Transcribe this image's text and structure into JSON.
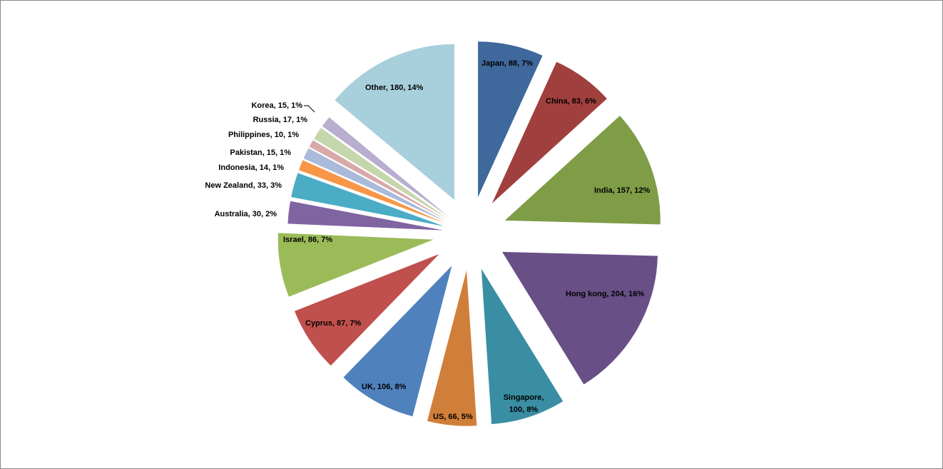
{
  "chart_data": {
    "type": "pie",
    "title": "",
    "exploded": true,
    "legend": "none",
    "slices": [
      {
        "label": "Japan",
        "value": 88,
        "percent": "7%",
        "color": "#3F689C"
      },
      {
        "label": "China",
        "value": 83,
        "percent": "6%",
        "color": "#A0403E"
      },
      {
        "label": "India",
        "value": 157,
        "percent": "12%",
        "color": "#7F9C47"
      },
      {
        "label": "Hong kong",
        "value": 204,
        "percent": "16%",
        "color": "#684F86"
      },
      {
        "label": "Singapore",
        "value": 100,
        "percent": "8%",
        "color": "#3A8EA3"
      },
      {
        "label": "US",
        "value": 66,
        "percent": "5%",
        "color": "#D07F3A"
      },
      {
        "label": "UK",
        "value": 106,
        "percent": "8%",
        "color": "#4F81BD"
      },
      {
        "label": "Cyprus",
        "value": 87,
        "percent": "7%",
        "color": "#C0504D"
      },
      {
        "label": "Israel",
        "value": 86,
        "percent": "7%",
        "color": "#9BBB59"
      },
      {
        "label": "Australia",
        "value": 30,
        "percent": "2%",
        "color": "#8064A2"
      },
      {
        "label": "New Zealand",
        "value": 33,
        "percent": "3%",
        "color": "#4BACC6"
      },
      {
        "label": "Indonesia",
        "value": 14,
        "percent": "1%",
        "color": "#F79646"
      },
      {
        "label": "Pakistan",
        "value": 15,
        "percent": "1%",
        "color": "#A9BADA"
      },
      {
        "label": "Philippines",
        "value": 10,
        "percent": "1%",
        "color": "#D8A9A9"
      },
      {
        "label": "Russia",
        "value": 17,
        "percent": "1%",
        "color": "#C6D6AC"
      },
      {
        "label": "Korea",
        "value": 15,
        "percent": "1%",
        "color": "#B9AECF"
      },
      {
        "label": "Other",
        "value": 180,
        "percent": "14%",
        "color": "#A8CFDC"
      }
    ]
  }
}
